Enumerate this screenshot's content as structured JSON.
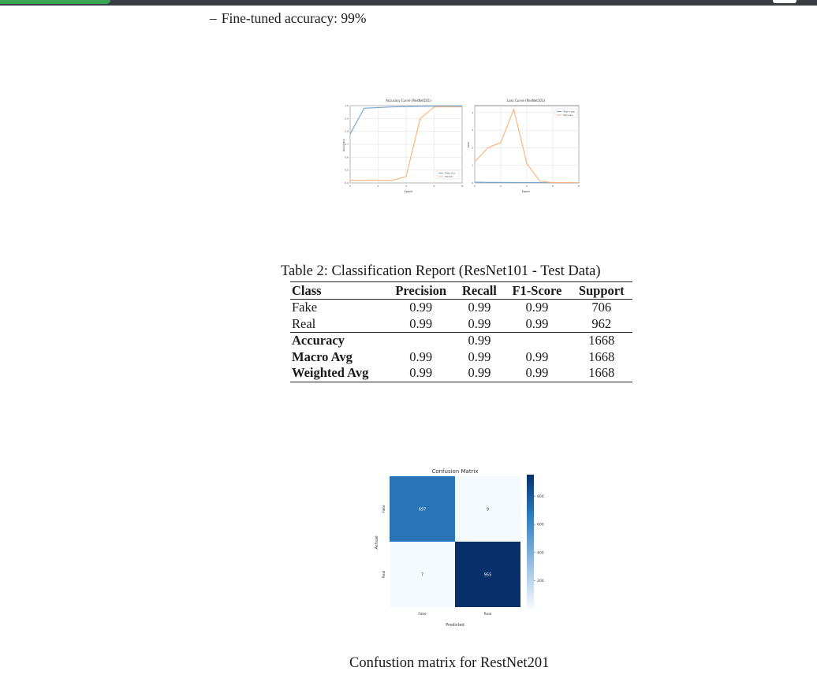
{
  "bullet": {
    "dash": "–",
    "text": "Fine-tuned accuracy: 99%"
  },
  "figure_curves": {
    "accuracy": {
      "title": "Accuracy Curve (ResNet101)",
      "xlabel": "Epoch",
      "ylabel": "Accuracy",
      "legend": [
        "Train Acc",
        "Val Acc"
      ],
      "colors": {
        "train": "#6fa5d2",
        "val": "#ffb077"
      }
    },
    "loss": {
      "title": "Loss Curve (ResNet101)",
      "xlabel": "Epoch",
      "ylabel": "Loss",
      "legend": [
        "Train Loss",
        "Val Loss"
      ],
      "colors": {
        "train": "#6fa5d2",
        "val": "#ffb077"
      }
    }
  },
  "chart_data": [
    {
      "type": "line",
      "title": "Accuracy Curve (ResNet101)",
      "xlabel": "Epoch",
      "ylabel": "Accuracy",
      "x": [
        0,
        1,
        2,
        3,
        4,
        5,
        6,
        7,
        8
      ],
      "series": [
        {
          "name": "Train Acc",
          "values": [
            0.78,
            0.98,
            0.985,
            0.99,
            0.993,
            0.995,
            0.996,
            0.997,
            0.997
          ]
        },
        {
          "name": "Val Acc",
          "values": [
            0.42,
            0.42,
            0.42,
            0.42,
            0.45,
            0.9,
            0.99,
            0.99,
            0.99
          ]
        }
      ],
      "xlim": [
        0,
        8
      ],
      "ylim": [
        0.4,
        1.0
      ],
      "yticks": [
        "0.4",
        "0.5",
        "0.6",
        "0.7",
        "0.8",
        "0.9",
        "1.0"
      ],
      "grid": true,
      "legend_position": "lower-right"
    },
    {
      "type": "line",
      "title": "Loss Curve (ResNet101)",
      "xlabel": "Epoch",
      "ylabel": "Loss",
      "x": [
        0,
        1,
        2,
        3,
        4,
        5,
        6,
        7,
        8
      ],
      "series": [
        {
          "name": "Train Loss",
          "values": [
            0.05,
            0.03,
            0.03,
            0.02,
            0.02,
            0.02,
            0.01,
            0.01,
            0.01
          ]
        },
        {
          "name": "Val Loss",
          "values": [
            1.2,
            2.0,
            2.3,
            4.2,
            1.1,
            0.1,
            0.02,
            0.02,
            0.02
          ]
        }
      ],
      "xlim": [
        0,
        8
      ],
      "ylim": [
        0,
        4.4
      ],
      "yticks": [
        "0",
        "1",
        "2",
        "3",
        "4"
      ],
      "grid": true,
      "legend_position": "top-right"
    },
    {
      "type": "heatmap",
      "title": "Confusion Matrix",
      "xlabel": "Predicted",
      "ylabel": "Actual",
      "x_categories": [
        "Fake",
        "Real"
      ],
      "y_categories": [
        "Fake",
        "Real"
      ],
      "values": [
        [
          697,
          9
        ],
        [
          7,
          955
        ]
      ],
      "colorbar_ticks": [
        "200",
        "400",
        "600",
        "800"
      ],
      "colorbar_range": [
        0,
        955
      ]
    }
  ],
  "table": {
    "caption": "Table 2: Classification Report (ResNet101 - Test Data)",
    "headers": [
      "Class",
      "Precision",
      "Recall",
      "F1-Score",
      "Support"
    ],
    "rows": [
      [
        "Fake",
        "0.99",
        "0.99",
        "0.99",
        "706"
      ],
      [
        "Real",
        "0.99",
        "0.99",
        "0.99",
        "962"
      ]
    ],
    "summary_rows": [
      [
        "Accuracy",
        "",
        "0.99",
        "",
        "1668"
      ],
      [
        "Macro Avg",
        "0.99",
        "0.99",
        "0.99",
        "1668"
      ],
      [
        "Weighted Avg",
        "0.99",
        "0.99",
        "0.99",
        "1668"
      ]
    ]
  },
  "confusion_matrix": {
    "title": "Confusion Matrix",
    "xlabel": "Predicted",
    "ylabel": "Actual",
    "caption": "Confustion matrix for RestNet201",
    "colors": {
      "low": "#f7fbff",
      "mid": "#2c7bbf",
      "high": "#08306b"
    }
  }
}
